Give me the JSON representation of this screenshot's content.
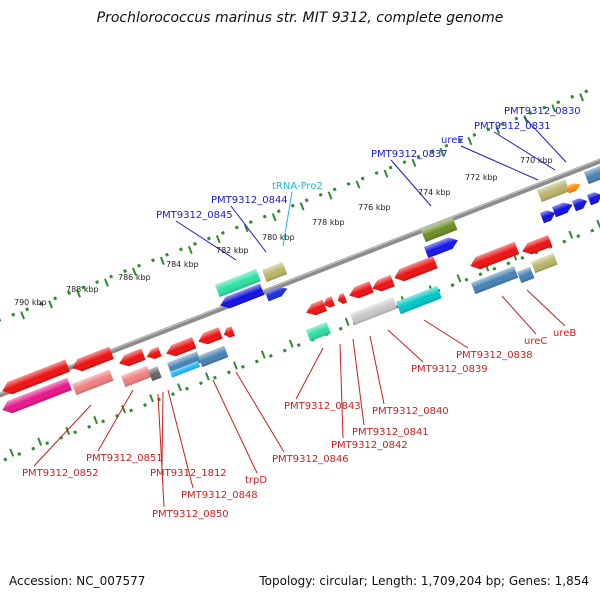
{
  "title": "Prochlorococcus marinus str. MIT 9312, complete genome",
  "footer": {
    "accession": "Accession: NC_007577",
    "stats": "Topology: circular; Length: 1,709,204 bp; Genes: 1,854"
  },
  "colors": {
    "backbone": "#8c8c8c",
    "scale_dots": "#2e8b2e",
    "top_label": "#1a1acc",
    "trna_label": "#22b8d8",
    "bottom_label": "#cc1f1f"
  },
  "scale_ticks": [
    "790 kbp",
    "788 kbp",
    "786 kbp",
    "784 kbp",
    "782 kbp",
    "780 kbp",
    "778 kbp",
    "776 kbp",
    "774 kbp",
    "772 kbp",
    "770 kbp"
  ],
  "top_labels": [
    {
      "text": "PMT9312_0830",
      "color": "blue"
    },
    {
      "text": "PMT9312_0831",
      "color": "blue"
    },
    {
      "text": "ureE",
      "color": "blue"
    },
    {
      "text": "PMT9312_0837",
      "color": "blue"
    },
    {
      "text": "tRNA-Pro2",
      "color": "cyan"
    },
    {
      "text": "PMT9312_0844",
      "color": "blue"
    },
    {
      "text": "PMT9312_0845",
      "color": "blue"
    }
  ],
  "bottom_labels": [
    {
      "text": "ureB"
    },
    {
      "text": "ureC"
    },
    {
      "text": "PMT9312_0838"
    },
    {
      "text": "PMT9312_0839"
    },
    {
      "text": "PMT9312_0840"
    },
    {
      "text": "PMT9312_0841"
    },
    {
      "text": "PMT9312_0842"
    },
    {
      "text": "PMT9312_0843"
    },
    {
      "text": "PMT9312_0846"
    },
    {
      "text": "trpD"
    },
    {
      "text": "PMT9312_0848"
    },
    {
      "text": "PMT9312_0850"
    },
    {
      "text": "PMT9312_1812"
    },
    {
      "text": "PMT9312_0851"
    },
    {
      "text": "PMT9312_0852"
    }
  ]
}
